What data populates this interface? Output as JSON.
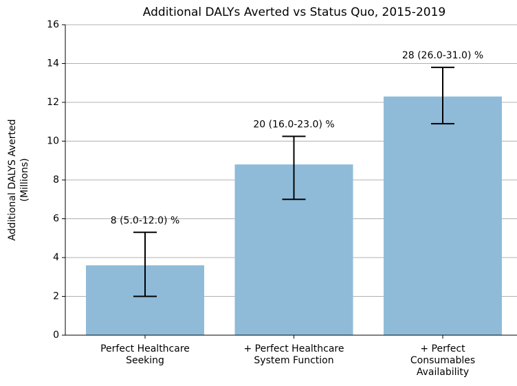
{
  "chart_data": {
    "type": "bar",
    "title": "Additional DALYs Averted vs Status Quo, 2015-2019",
    "y_label": "Additional DALYS Averted\n(Millions)",
    "categories": [
      "Perfect Healthcare\nSeeking",
      "+ Perfect Healthcare\nSystem Function",
      "+ Perfect\nConsumables\nAvailability"
    ],
    "values": [
      3.6,
      8.8,
      12.3
    ],
    "error_low": [
      2.0,
      7.0,
      10.9
    ],
    "error_high": [
      5.3,
      10.25,
      13.8
    ],
    "annotations": [
      "8 (5.0-12.0) %",
      "20 (16.0-23.0) %",
      "28 (26.0-31.0) %"
    ],
    "color": "#8fbbd9",
    "ylim": [
      0,
      16
    ],
    "yticks": [
      0,
      2,
      4,
      6,
      8,
      10,
      12,
      14,
      16
    ],
    "grid": true
  }
}
